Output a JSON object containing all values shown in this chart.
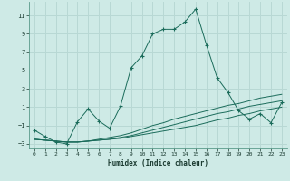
{
  "xlabel": "Humidex (Indice chaleur)",
  "bg_color": "#ceeae6",
  "grid_color": "#b8d8d4",
  "line_color": "#1a6b5a",
  "xlim": [
    -0.5,
    23.5
  ],
  "ylim": [
    -3.5,
    12.5
  ],
  "xticks": [
    0,
    1,
    2,
    3,
    4,
    5,
    6,
    7,
    8,
    9,
    10,
    11,
    12,
    13,
    14,
    15,
    16,
    17,
    18,
    19,
    20,
    21,
    22,
    23
  ],
  "yticks": [
    -3,
    -1,
    1,
    3,
    5,
    7,
    9,
    11
  ],
  "line1_x": [
    0,
    1,
    2,
    3,
    4,
    5,
    6,
    7,
    8,
    9,
    10,
    11,
    12,
    13,
    14,
    15,
    16,
    17,
    18,
    19,
    20,
    21,
    22,
    23
  ],
  "line1_y": [
    -1.5,
    -2.2,
    -2.8,
    -3.0,
    -0.6,
    0.8,
    -0.5,
    -1.3,
    1.1,
    5.3,
    6.6,
    9.0,
    9.5,
    9.5,
    10.3,
    11.7,
    7.8,
    4.2,
    2.6,
    0.6,
    -0.3,
    0.3,
    -0.7,
    1.5
  ],
  "line2_x": [
    0,
    1,
    2,
    3,
    4,
    5,
    6,
    7,
    8,
    9,
    10,
    11,
    12,
    13,
    14,
    15,
    16,
    17,
    18,
    19,
    20,
    21,
    22,
    23
  ],
  "line2_y": [
    -2.5,
    -2.6,
    -2.7,
    -2.8,
    -2.8,
    -2.7,
    -2.6,
    -2.5,
    -2.4,
    -2.2,
    -2.0,
    -1.8,
    -1.6,
    -1.4,
    -1.2,
    -1.0,
    -0.7,
    -0.4,
    -0.2,
    0.1,
    0.3,
    0.6,
    0.8,
    1.0
  ],
  "line3_x": [
    0,
    1,
    2,
    3,
    4,
    5,
    6,
    7,
    8,
    9,
    10,
    11,
    12,
    13,
    14,
    15,
    16,
    17,
    18,
    19,
    20,
    21,
    22,
    23
  ],
  "line3_y": [
    -2.5,
    -2.6,
    -2.7,
    -2.8,
    -2.8,
    -2.7,
    -2.6,
    -2.5,
    -2.3,
    -2.1,
    -1.8,
    -1.5,
    -1.2,
    -0.9,
    -0.6,
    -0.3,
    0.0,
    0.3,
    0.5,
    0.8,
    1.1,
    1.3,
    1.5,
    1.7
  ],
  "line4_x": [
    0,
    1,
    2,
    3,
    4,
    5,
    6,
    7,
    8,
    9,
    10,
    11,
    12,
    13,
    14,
    15,
    16,
    17,
    18,
    19,
    20,
    21,
    22,
    23
  ],
  "line4_y": [
    -2.5,
    -2.6,
    -2.7,
    -2.8,
    -2.8,
    -2.7,
    -2.5,
    -2.3,
    -2.1,
    -1.8,
    -1.4,
    -1.0,
    -0.7,
    -0.3,
    0.0,
    0.3,
    0.6,
    0.9,
    1.2,
    1.4,
    1.7,
    2.0,
    2.2,
    2.4
  ]
}
